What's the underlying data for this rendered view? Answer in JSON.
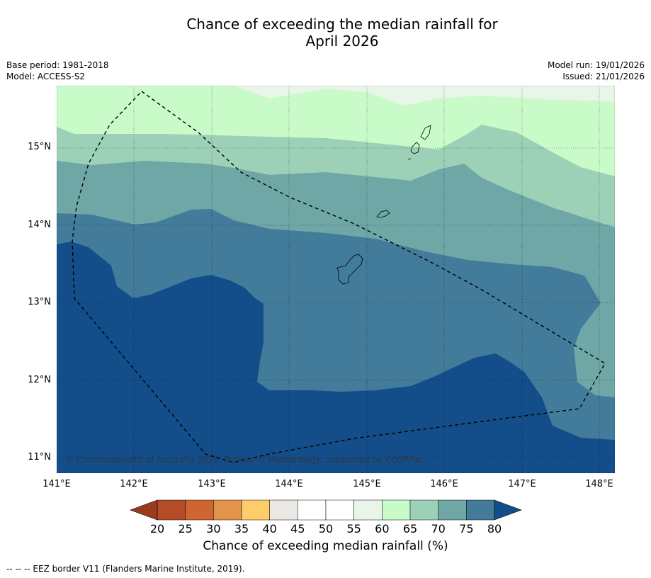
{
  "header": {
    "title_line1": "Chance of exceeding the median rainfall for",
    "title_line2": "April 2026"
  },
  "meta_left": {
    "base_period": "Base period: 1981-2018",
    "model": "Model: ACCESS-S2"
  },
  "meta_right": {
    "model_run": "Model run: 19/01/2026",
    "issued": "Issued: 21/01/2026"
  },
  "map": {
    "lon_range": [
      141.0,
      148.2
    ],
    "lat_range": [
      10.8,
      15.8
    ],
    "lat_ticks": [
      {
        "value": 15,
        "label": "15°N"
      },
      {
        "value": 14,
        "label": "14°N"
      },
      {
        "value": 13,
        "label": "13°N"
      },
      {
        "value": 12,
        "label": "12°N"
      },
      {
        "value": 11,
        "label": "11°N"
      }
    ],
    "lon_ticks": [
      {
        "value": 141,
        "label": "141°E"
      },
      {
        "value": 142,
        "label": "142°E"
      },
      {
        "value": 143,
        "label": "143°E"
      },
      {
        "value": 144,
        "label": "144°E"
      },
      {
        "value": 145,
        "label": "145°E"
      },
      {
        "value": 146,
        "label": "146°E"
      },
      {
        "value": 147,
        "label": "147°E"
      },
      {
        "value": 148,
        "label": "148°E"
      }
    ],
    "copyright": "© Commonwealth of Australia 2026, Bureau of Meteorology, supported by COSPPac"
  },
  "colorbar": {
    "label": "Chance of exceeding median rainfall (%)",
    "ticks": [
      "20",
      "25",
      "30",
      "35",
      "40",
      "45",
      "50",
      "55",
      "60",
      "65",
      "70",
      "75",
      "80"
    ],
    "under_color": "#9a3b1e",
    "colors": [
      "#b44d27",
      "#cf6631",
      "#e2954a",
      "#fdcc6b",
      "#ece8e4",
      "#ffffff",
      "#ffffff",
      "#e8f5e8",
      "#c9fbc9",
      "#9cd1b8",
      "#6fa6a6",
      "#427c9a"
    ],
    "over_color": "#134e8a"
  },
  "footnote": "-- -- -- EEZ border V11 (Flanders Marine Institute, 2019)."
}
